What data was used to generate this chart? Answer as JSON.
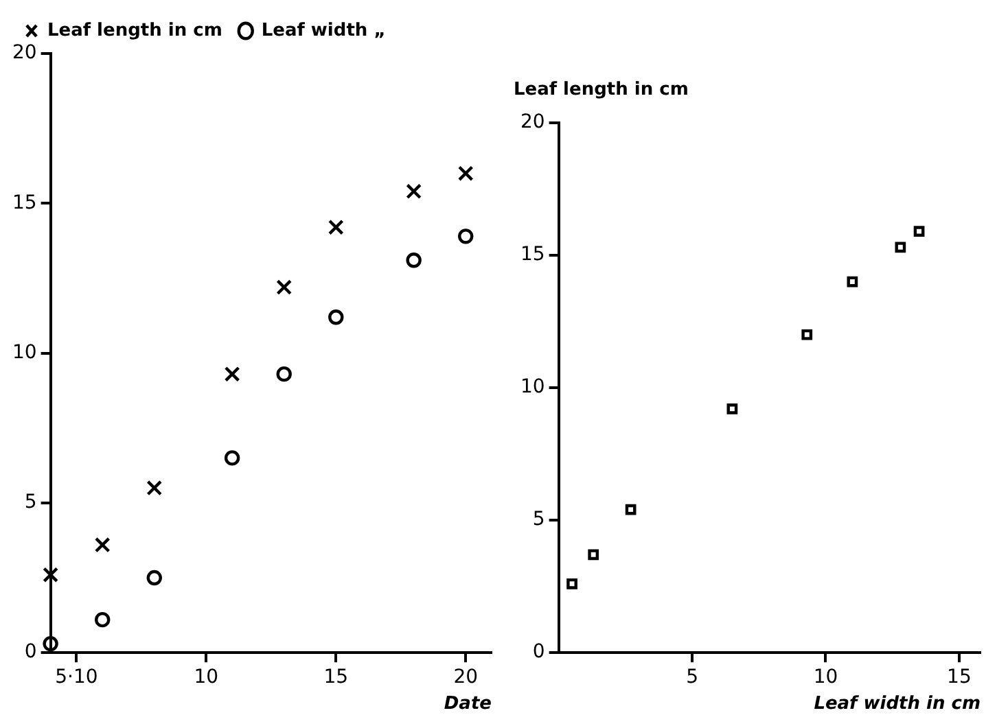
{
  "chart_data": [
    {
      "type": "scatter",
      "xlabel": "Date",
      "x": [
        4,
        6,
        8,
        11,
        13,
        15,
        18,
        20
      ],
      "series": [
        {
          "name": "Leaf length in cm",
          "color": "#000000",
          "marker": "cross",
          "values": [
            2.6,
            3.6,
            5.5,
            9.3,
            12.2,
            14.2,
            15.4,
            16.0
          ]
        },
        {
          "name": "Leaf width „",
          "color": "#000000",
          "marker": "circle",
          "values": [
            0.3,
            1.1,
            2.5,
            6.5,
            9.3,
            11.2,
            13.1,
            13.9
          ]
        }
      ],
      "xlim": [
        4,
        21
      ],
      "xticks": [
        {
          "value": 5,
          "label": "5·10"
        },
        10,
        15,
        20
      ],
      "ylim": [
        0,
        20
      ],
      "yticks": [
        0,
        5,
        10,
        15,
        20
      ],
      "legend": "top left"
    },
    {
      "type": "scatter",
      "ylabel": "Leaf length in cm",
      "xlabel": "Leaf width in cm",
      "marker": "square",
      "series": [
        {
          "color": "#000000",
          "x": [
            0.5,
            1.3,
            2.7,
            6.5,
            9.3,
            11.0,
            12.8,
            13.5
          ],
          "values": [
            2.6,
            3.7,
            5.4,
            9.2,
            12.0,
            14.0,
            15.3,
            15.9
          ]
        }
      ],
      "xlim": [
        0,
        15.8
      ],
      "xticks": [
        5,
        10,
        15
      ],
      "ylim": [
        0,
        20
      ],
      "yticks": [
        0,
        5,
        10,
        15,
        20
      ]
    }
  ]
}
